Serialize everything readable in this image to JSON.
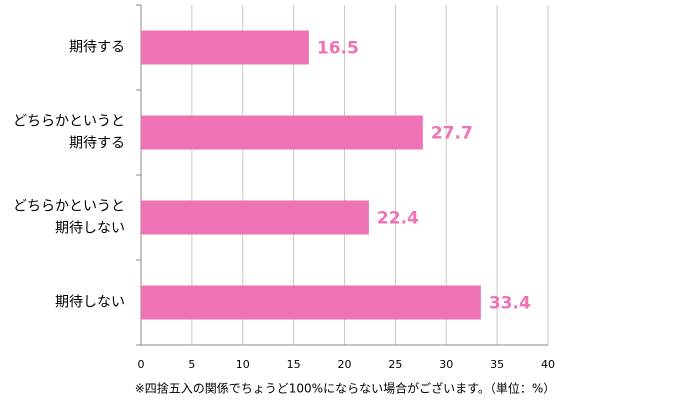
{
  "chart_data": {
    "type": "bar",
    "orientation": "horizontal",
    "categories": [
      [
        "期待する"
      ],
      [
        "どちらかというと",
        "期待する"
      ],
      [
        "どちらかというと",
        "期待しない"
      ],
      [
        "期待しない"
      ]
    ],
    "values": [
      16.5,
      27.7,
      22.4,
      33.4
    ],
    "color": "#f072b6",
    "label_color": "#f072b6",
    "xlim": [
      0,
      40
    ],
    "xticks": [
      0,
      5,
      10,
      15,
      20,
      25,
      30,
      35,
      40
    ],
    "grid": true,
    "note": "※四捨五入の関係でちょうど100%にならない場合がございます。（単位：%）"
  }
}
